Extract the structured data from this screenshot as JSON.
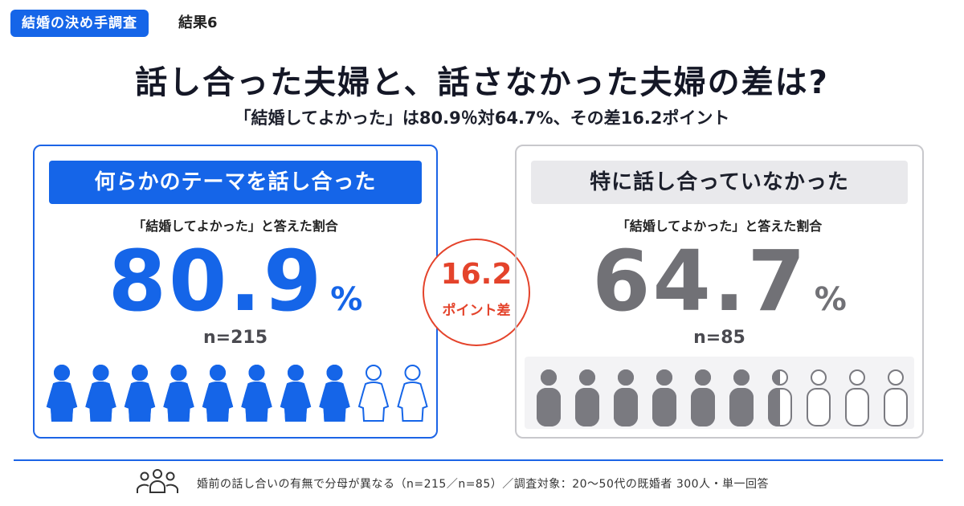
{
  "header": {
    "tag": "結婚の決め手調査",
    "result_label": "結果6"
  },
  "title": "話し合った夫婦と、話さなかった夫婦の差は?",
  "subtitle": "「結婚してよかった」は80.9％対64.7%、その差16.2ポイント",
  "chart_data": {
    "type": "pictograph",
    "question": "「結婚してよかった」と答えた割合",
    "icons_per_group": 10,
    "unit": "%",
    "series": [
      {
        "name": "何らかのテーマを話し合った",
        "value": 80.9,
        "value_label": "80.9",
        "n_label": "n=215",
        "filled_icons": 8,
        "color": "#1565e8"
      },
      {
        "name": "特に話し合っていなかった",
        "value": 64.7,
        "value_label": "64.7",
        "n_label": "n=85",
        "filled_icons": 6.5,
        "color": "#7a7a80"
      }
    ],
    "difference": {
      "value_label": "16.2",
      "label": "ポイント差",
      "color": "#e4432b"
    }
  },
  "footer": {
    "icon": "people-group-icon",
    "text": "婚前の話し合いの有無で分母が異なる（n=215／n=85）／調査対象：20〜50代の既婚者 300人・単一回答"
  },
  "colors": {
    "accent": "#1565e8",
    "neutral": "#7a7a80",
    "highlight": "#e4432b"
  }
}
